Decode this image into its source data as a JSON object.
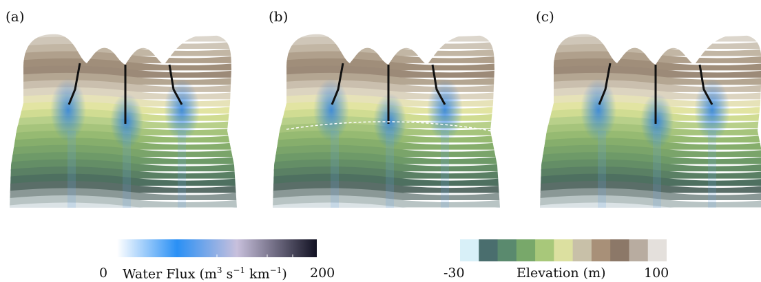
{
  "panels": [
    {
      "label": "(a)",
      "show_dashed_line": false
    },
    {
      "label": "(b)",
      "show_dashed_line": true
    },
    {
      "label": "(c)",
      "show_dashed_line": false
    }
  ],
  "water_flux_colorbar": {
    "min_label": "0",
    "max_label": "200",
    "title_prefix": "Water Flux (m",
    "sup1": "3",
    "mid": " s",
    "sup2": "−1",
    "mid2": " km",
    "sup3": "−1",
    "suffix": ")",
    "colors": [
      "#ffffff",
      "#2a90f5",
      "#c8c0dc",
      "#111122"
    ]
  },
  "elevation_colorbar": {
    "min_label": "-30",
    "max_label": "100",
    "title": "Elevation (m)",
    "colors": [
      "#d8f0f8",
      "#4a6e6e",
      "#5a8a6e",
      "#78a86a",
      "#a8c87a",
      "#dce0a0",
      "#c8c0a8",
      "#a89078",
      "#8c7868",
      "#b8aca0",
      "#e4e0dc"
    ]
  }
}
